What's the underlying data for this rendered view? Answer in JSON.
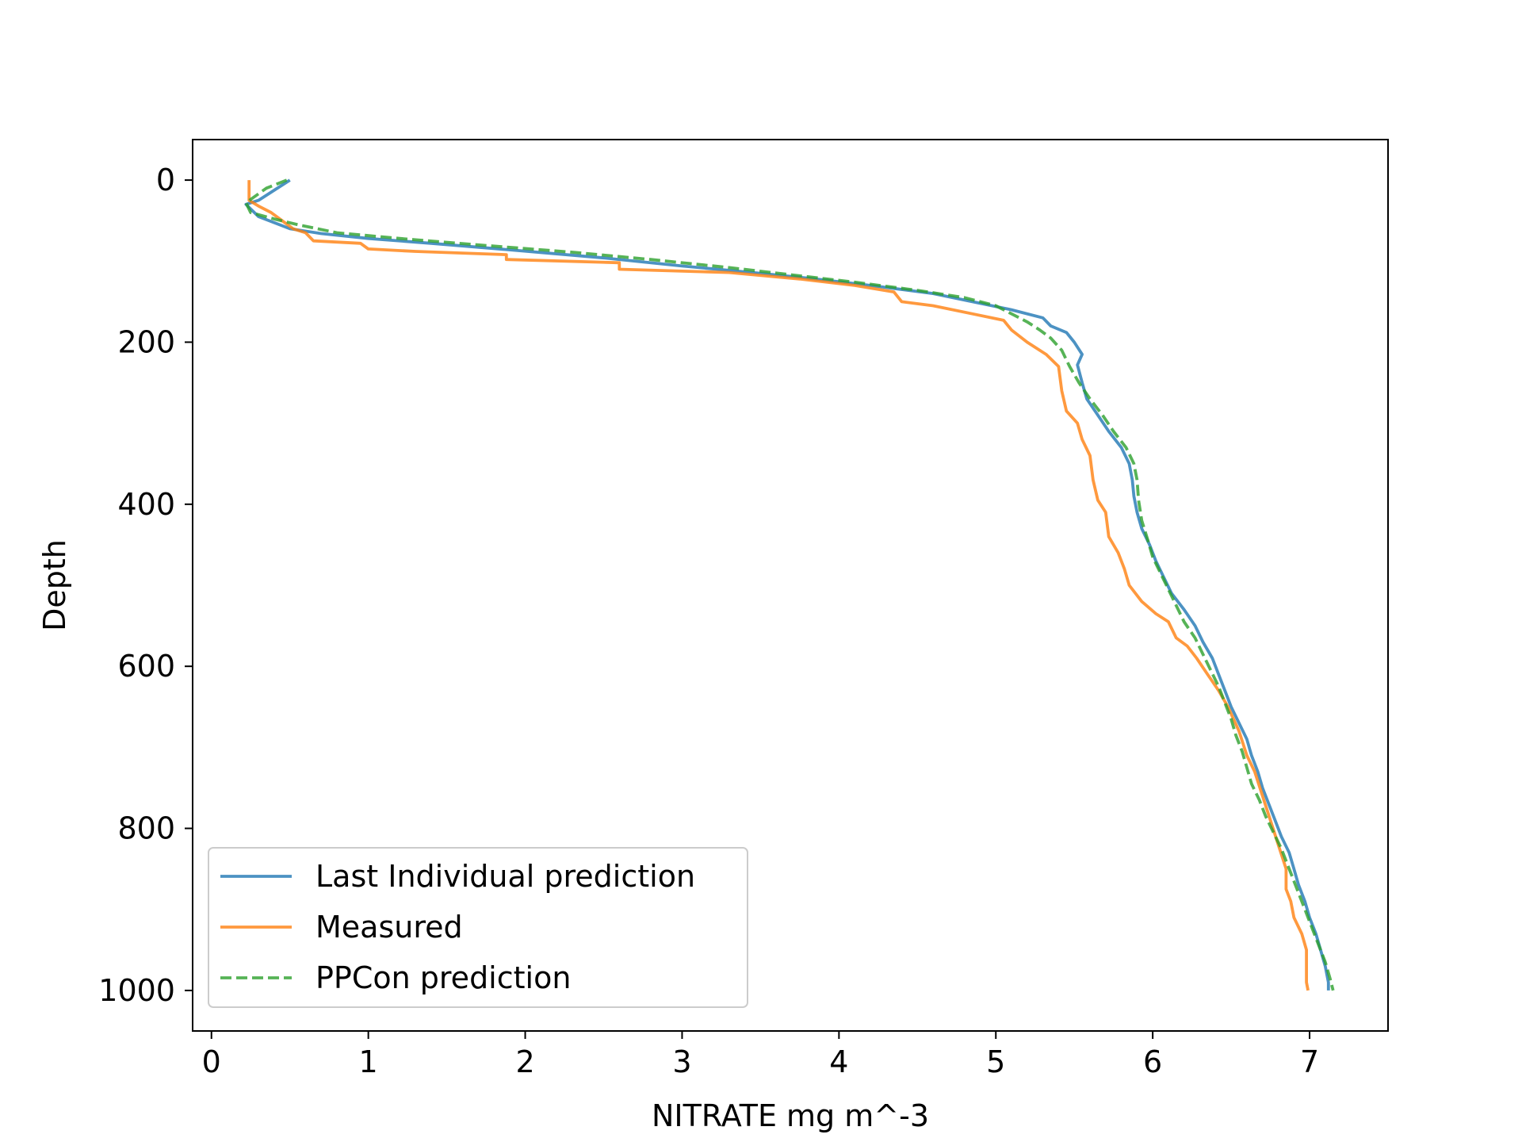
{
  "chart_data": {
    "type": "line",
    "xlabel": "NITRATE mg m^-3",
    "ylabel": "Depth",
    "xlim": [
      -0.12,
      7.5
    ],
    "ylim": [
      1050,
      -50
    ],
    "y_inverted": true,
    "xticks": [
      0,
      1,
      2,
      3,
      4,
      5,
      6,
      7
    ],
    "yticks": [
      0,
      200,
      400,
      600,
      800,
      1000
    ],
    "grid": false,
    "legend_position": "lower-left",
    "series": [
      {
        "name": "Last Individual prediction",
        "color": "#1f77b4",
        "style": "solid",
        "points": [
          [
            0.5,
            0
          ],
          [
            0.3,
            25
          ],
          [
            0.22,
            30
          ],
          [
            0.3,
            45
          ],
          [
            0.5,
            60
          ],
          [
            0.7,
            66
          ],
          [
            1.0,
            72
          ],
          [
            1.4,
            78
          ],
          [
            1.9,
            86
          ],
          [
            2.5,
            96
          ],
          [
            3.0,
            106
          ],
          [
            3.5,
            115
          ],
          [
            3.8,
            121
          ],
          [
            4.2,
            130
          ],
          [
            4.6,
            140
          ],
          [
            4.85,
            150
          ],
          [
            5.1,
            160
          ],
          [
            5.3,
            170
          ],
          [
            5.35,
            180
          ],
          [
            5.45,
            188
          ],
          [
            5.5,
            200
          ],
          [
            5.55,
            215
          ],
          [
            5.52,
            228
          ],
          [
            5.55,
            250
          ],
          [
            5.58,
            270
          ],
          [
            5.65,
            290
          ],
          [
            5.72,
            310
          ],
          [
            5.8,
            330
          ],
          [
            5.85,
            350
          ],
          [
            5.87,
            370
          ],
          [
            5.88,
            390
          ],
          [
            5.9,
            410
          ],
          [
            5.93,
            430
          ],
          [
            5.98,
            450
          ],
          [
            6.02,
            470
          ],
          [
            6.07,
            490
          ],
          [
            6.12,
            510
          ],
          [
            6.2,
            530
          ],
          [
            6.27,
            550
          ],
          [
            6.32,
            570
          ],
          [
            6.38,
            590
          ],
          [
            6.42,
            610
          ],
          [
            6.46,
            630
          ],
          [
            6.5,
            650
          ],
          [
            6.55,
            670
          ],
          [
            6.6,
            690
          ],
          [
            6.63,
            710
          ],
          [
            6.67,
            730
          ],
          [
            6.7,
            750
          ],
          [
            6.74,
            770
          ],
          [
            6.78,
            790
          ],
          [
            6.82,
            810
          ],
          [
            6.87,
            830
          ],
          [
            6.9,
            850
          ],
          [
            6.93,
            870
          ],
          [
            6.97,
            890
          ],
          [
            7.0,
            910
          ],
          [
            7.04,
            930
          ],
          [
            7.07,
            950
          ],
          [
            7.1,
            970
          ],
          [
            7.12,
            990
          ],
          [
            7.12,
            1000
          ]
        ]
      },
      {
        "name": "Measured",
        "color": "#ff7f0e",
        "style": "solid",
        "points": [
          [
            0.24,
            0
          ],
          [
            0.24,
            25
          ],
          [
            0.3,
            32
          ],
          [
            0.38,
            40
          ],
          [
            0.45,
            50
          ],
          [
            0.52,
            60
          ],
          [
            0.6,
            65
          ],
          [
            0.65,
            75
          ],
          [
            0.95,
            78
          ],
          [
            1.0,
            85
          ],
          [
            1.3,
            88
          ],
          [
            1.88,
            92
          ],
          [
            1.88,
            98
          ],
          [
            2.6,
            102
          ],
          [
            2.6,
            110
          ],
          [
            3.3,
            114
          ],
          [
            3.75,
            122
          ],
          [
            4.1,
            130
          ],
          [
            4.35,
            138
          ],
          [
            4.4,
            150
          ],
          [
            4.6,
            155
          ],
          [
            4.85,
            165
          ],
          [
            5.05,
            173
          ],
          [
            5.1,
            185
          ],
          [
            5.2,
            200
          ],
          [
            5.32,
            215
          ],
          [
            5.4,
            230
          ],
          [
            5.42,
            260
          ],
          [
            5.45,
            285
          ],
          [
            5.52,
            300
          ],
          [
            5.55,
            320
          ],
          [
            5.6,
            340
          ],
          [
            5.62,
            370
          ],
          [
            5.65,
            395
          ],
          [
            5.7,
            410
          ],
          [
            5.72,
            440
          ],
          [
            5.78,
            460
          ],
          [
            5.82,
            480
          ],
          [
            5.85,
            500
          ],
          [
            5.93,
            520
          ],
          [
            6.02,
            535
          ],
          [
            6.1,
            545
          ],
          [
            6.15,
            565
          ],
          [
            6.22,
            575
          ],
          [
            6.28,
            590
          ],
          [
            6.35,
            610
          ],
          [
            6.42,
            630
          ],
          [
            6.48,
            650
          ],
          [
            6.55,
            680
          ],
          [
            6.6,
            710
          ],
          [
            6.65,
            730
          ],
          [
            6.7,
            760
          ],
          [
            6.75,
            790
          ],
          [
            6.8,
            820
          ],
          [
            6.85,
            850
          ],
          [
            6.85,
            875
          ],
          [
            6.88,
            890
          ],
          [
            6.9,
            910
          ],
          [
            6.95,
            930
          ],
          [
            6.98,
            950
          ],
          [
            6.98,
            990
          ],
          [
            6.99,
            1000
          ]
        ]
      },
      {
        "name": "PPCon prediction",
        "color": "#2ca02c",
        "style": "dashed",
        "points": [
          [
            0.48,
            0
          ],
          [
            0.35,
            10
          ],
          [
            0.22,
            28
          ],
          [
            0.25,
            40
          ],
          [
            0.4,
            48
          ],
          [
            0.55,
            55
          ],
          [
            0.8,
            65
          ],
          [
            1.2,
            72
          ],
          [
            1.7,
            80
          ],
          [
            2.3,
            89
          ],
          [
            2.8,
            98
          ],
          [
            3.3,
            108
          ],
          [
            3.7,
            117
          ],
          [
            4.1,
            126
          ],
          [
            4.5,
            136
          ],
          [
            4.8,
            145
          ],
          [
            5.0,
            155
          ],
          [
            5.1,
            165
          ],
          [
            5.2,
            175
          ],
          [
            5.28,
            185
          ],
          [
            5.35,
            195
          ],
          [
            5.42,
            210
          ],
          [
            5.47,
            230
          ],
          [
            5.53,
            250
          ],
          [
            5.6,
            270
          ],
          [
            5.68,
            290
          ],
          [
            5.75,
            310
          ],
          [
            5.83,
            330
          ],
          [
            5.88,
            350
          ],
          [
            5.9,
            370
          ],
          [
            5.91,
            395
          ],
          [
            5.93,
            420
          ],
          [
            5.97,
            445
          ],
          [
            6.0,
            465
          ],
          [
            6.05,
            485
          ],
          [
            6.1,
            505
          ],
          [
            6.15,
            525
          ],
          [
            6.2,
            545
          ],
          [
            6.27,
            565
          ],
          [
            6.32,
            585
          ],
          [
            6.37,
            605
          ],
          [
            6.42,
            625
          ],
          [
            6.46,
            645
          ],
          [
            6.5,
            665
          ],
          [
            6.53,
            685
          ],
          [
            6.57,
            705
          ],
          [
            6.6,
            725
          ],
          [
            6.63,
            745
          ],
          [
            6.68,
            765
          ],
          [
            6.72,
            785
          ],
          [
            6.77,
            805
          ],
          [
            6.82,
            825
          ],
          [
            6.86,
            845
          ],
          [
            6.9,
            865
          ],
          [
            6.94,
            885
          ],
          [
            6.98,
            905
          ],
          [
            7.02,
            925
          ],
          [
            7.06,
            945
          ],
          [
            7.1,
            965
          ],
          [
            7.13,
            985
          ],
          [
            7.15,
            1000
          ]
        ]
      }
    ]
  }
}
